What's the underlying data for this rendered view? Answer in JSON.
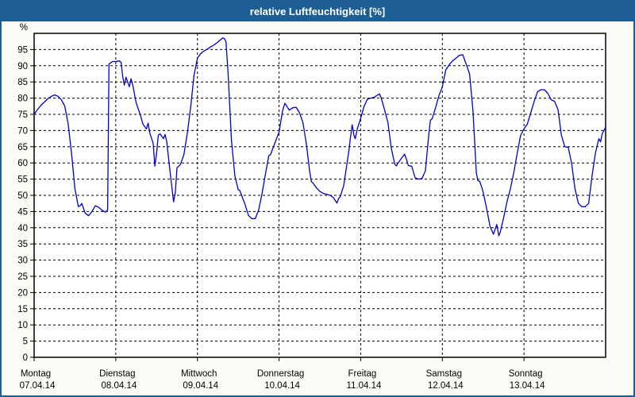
{
  "window": {
    "title": "relative Luftfeuchtigkeit [%]"
  },
  "colors": {
    "titlebar_bg": "#1d5f94",
    "titlebar_text": "#ffffff",
    "frame_border": "#1d5f94",
    "page_bg": "#fcfcf7",
    "plot_bg": "#ffffff",
    "axis": "#000000",
    "grid": "#000000",
    "line": "#0000cc",
    "label_text": "#000000"
  },
  "chart_data": {
    "type": "line",
    "title": "relative Luftfeuchtigkeit [%]",
    "ylabel": "%",
    "xlabel": "",
    "ylim": [
      0,
      100
    ],
    "xlim_hours": [
      0,
      168
    ],
    "yticks": [
      0,
      5,
      10,
      15,
      20,
      25,
      30,
      35,
      40,
      45,
      50,
      55,
      60,
      65,
      70,
      75,
      80,
      85,
      90,
      95
    ],
    "grid": true,
    "day_gridlines_hours": [
      24,
      48,
      72,
      96,
      120,
      144
    ],
    "day_labels": [
      {
        "name": "Montag",
        "date": "07.04.14",
        "hour": 0
      },
      {
        "name": "Dienstag",
        "date": "08.04.14",
        "hour": 24
      },
      {
        "name": "Mittwoch",
        "date": "09.04.14",
        "hour": 48
      },
      {
        "name": "Donnerstag",
        "date": "10.04.14",
        "hour": 72
      },
      {
        "name": "Freitag",
        "date": "11.04.14",
        "hour": 96
      },
      {
        "name": "Samstag",
        "date": "12.04.14",
        "hour": 120
      },
      {
        "name": "Sonntag",
        "date": "13.04.14",
        "hour": 144
      }
    ],
    "series": [
      {
        "name": "relative Luftfeuchtigkeit",
        "unit": "%",
        "points": [
          [
            0,
            75
          ],
          [
            1,
            76.5
          ],
          [
            2,
            77.8
          ],
          [
            3,
            78.8
          ],
          [
            4,
            79.8
          ],
          [
            5,
            80.5
          ],
          [
            6,
            81
          ],
          [
            7,
            80.6
          ],
          [
            8,
            79.5
          ],
          [
            9,
            77.5
          ],
          [
            10,
            72
          ],
          [
            11,
            63
          ],
          [
            12,
            52
          ],
          [
            13,
            46.5
          ],
          [
            13.5,
            46.8
          ],
          [
            14,
            47.5
          ],
          [
            15,
            44.5
          ],
          [
            16,
            43.7
          ],
          [
            17,
            45
          ],
          [
            18,
            46.8
          ],
          [
            19,
            46.3
          ],
          [
            20,
            45.4
          ],
          [
            21,
            44.8
          ],
          [
            21.6,
            45.5
          ],
          [
            22,
            90.5
          ],
          [
            23,
            91.3
          ],
          [
            24,
            91.3
          ],
          [
            25,
            91.5
          ],
          [
            25.6,
            91
          ],
          [
            26,
            87
          ],
          [
            26.5,
            84
          ],
          [
            27,
            86.5
          ],
          [
            28,
            83.5
          ],
          [
            28.5,
            86
          ],
          [
            29,
            84
          ],
          [
            30,
            78.5
          ],
          [
            31,
            75.5
          ],
          [
            32,
            72
          ],
          [
            33,
            70.5
          ],
          [
            33.5,
            72.3
          ],
          [
            34,
            69.3
          ],
          [
            35,
            66
          ],
          [
            35.5,
            59
          ],
          [
            36,
            63
          ],
          [
            36.5,
            68.5
          ],
          [
            37,
            69
          ],
          [
            38,
            67.5
          ],
          [
            38.5,
            68.8
          ],
          [
            39,
            66.5
          ],
          [
            40,
            57
          ],
          [
            41,
            48
          ],
          [
            41.5,
            51
          ],
          [
            42,
            58.5
          ],
          [
            43,
            59.5
          ],
          [
            44,
            62.5
          ],
          [
            45,
            69
          ],
          [
            46,
            77
          ],
          [
            47,
            87
          ],
          [
            48,
            92.3
          ],
          [
            49,
            93.8
          ],
          [
            50,
            94.6
          ],
          [
            51,
            95.2
          ],
          [
            52,
            95.9
          ],
          [
            53,
            96.5
          ],
          [
            54,
            97.3
          ],
          [
            55,
            98.2
          ],
          [
            55.5,
            98.6
          ],
          [
            56,
            98.3
          ],
          [
            56.4,
            97.4
          ],
          [
            57,
            88
          ],
          [
            58,
            67
          ],
          [
            59,
            56
          ],
          [
            60,
            51.8
          ],
          [
            60.5,
            51.4
          ],
          [
            61,
            50
          ],
          [
            62,
            47.2
          ],
          [
            63,
            43.8
          ],
          [
            64,
            42.8
          ],
          [
            65,
            42.8
          ],
          [
            66,
            45.5
          ],
          [
            67,
            50.5
          ],
          [
            68,
            56.5
          ],
          [
            69,
            62.3
          ],
          [
            69.5,
            62.6
          ],
          [
            70,
            64
          ],
          [
            71,
            66.8
          ],
          [
            72,
            69.5
          ],
          [
            73,
            76
          ],
          [
            73.7,
            78.4
          ],
          [
            74,
            78
          ],
          [
            75,
            76.3
          ],
          [
            76,
            77
          ],
          [
            77,
            77.2
          ],
          [
            78,
            75.5
          ],
          [
            79,
            72.5
          ],
          [
            80,
            66
          ],
          [
            81,
            57.5
          ],
          [
            81.5,
            54.2
          ],
          [
            82,
            53.8
          ],
          [
            83,
            52.3
          ],
          [
            84,
            51.2
          ],
          [
            85,
            50.6
          ],
          [
            86,
            50.3
          ],
          [
            87,
            50
          ],
          [
            88,
            49.3
          ],
          [
            89,
            47.6
          ],
          [
            89.5,
            49
          ],
          [
            90,
            49.6
          ],
          [
            91,
            53
          ],
          [
            92,
            60
          ],
          [
            92.5,
            63.5
          ],
          [
            93,
            68
          ],
          [
            93.5,
            71.8
          ],
          [
            94,
            68.5
          ],
          [
            94.4,
            67.5
          ],
          [
            95,
            70.5
          ],
          [
            96,
            73.8
          ],
          [
            97,
            77.5
          ],
          [
            98,
            79.7
          ],
          [
            99,
            80
          ],
          [
            100,
            80.3
          ],
          [
            101,
            81
          ],
          [
            101.5,
            81.3
          ],
          [
            102,
            80.2
          ],
          [
            103,
            76.5
          ],
          [
            104,
            72.5
          ],
          [
            105,
            64.5
          ],
          [
            106,
            59.6
          ],
          [
            106.5,
            59.1
          ],
          [
            107,
            60
          ],
          [
            108,
            61.5
          ],
          [
            108.9,
            62.7
          ],
          [
            109.5,
            61
          ],
          [
            110,
            59.2
          ],
          [
            111,
            59
          ],
          [
            112,
            55.4
          ],
          [
            113,
            55
          ],
          [
            114,
            55.2
          ],
          [
            115,
            57.5
          ],
          [
            115.5,
            63
          ],
          [
            116,
            68.5
          ],
          [
            116.5,
            73.2
          ],
          [
            117,
            73.6
          ],
          [
            118,
            77
          ],
          [
            119,
            80.8
          ],
          [
            120,
            83.5
          ],
          [
            121,
            88.7
          ],
          [
            122,
            90.3
          ],
          [
            123,
            91.5
          ],
          [
            124,
            92.3
          ],
          [
            125,
            93.2
          ],
          [
            126,
            93.4
          ],
          [
            127,
            90.5
          ],
          [
            128,
            87.5
          ],
          [
            129,
            76
          ],
          [
            130,
            57
          ],
          [
            130.4,
            54.6
          ],
          [
            131,
            54.3
          ],
          [
            131.6,
            52.4
          ],
          [
            132,
            51
          ],
          [
            133,
            46
          ],
          [
            134,
            40.5
          ],
          [
            135,
            38
          ],
          [
            136,
            41
          ],
          [
            136.6,
            37.5
          ],
          [
            137,
            38.5
          ],
          [
            138,
            43
          ],
          [
            139,
            48
          ],
          [
            140,
            52
          ],
          [
            141,
            57
          ],
          [
            142,
            63
          ],
          [
            143,
            68.5
          ],
          [
            144,
            70.5
          ],
          [
            145,
            72
          ],
          [
            146,
            75.5
          ],
          [
            147,
            79
          ],
          [
            148,
            82
          ],
          [
            149,
            82.6
          ],
          [
            150,
            82.6
          ],
          [
            151,
            81.5
          ],
          [
            152,
            79.5
          ],
          [
            153,
            79
          ],
          [
            154,
            76.5
          ],
          [
            155,
            68.5
          ],
          [
            156,
            65
          ],
          [
            157,
            64.8
          ],
          [
            158,
            60
          ],
          [
            159,
            52
          ],
          [
            160,
            47.5
          ],
          [
            161,
            46.5
          ],
          [
            162,
            46.5
          ],
          [
            163,
            47.5
          ],
          [
            164,
            56
          ],
          [
            165,
            63
          ],
          [
            166,
            67.5
          ],
          [
            166.5,
            66.5
          ],
          [
            167,
            69
          ],
          [
            168,
            71
          ]
        ]
      }
    ]
  }
}
